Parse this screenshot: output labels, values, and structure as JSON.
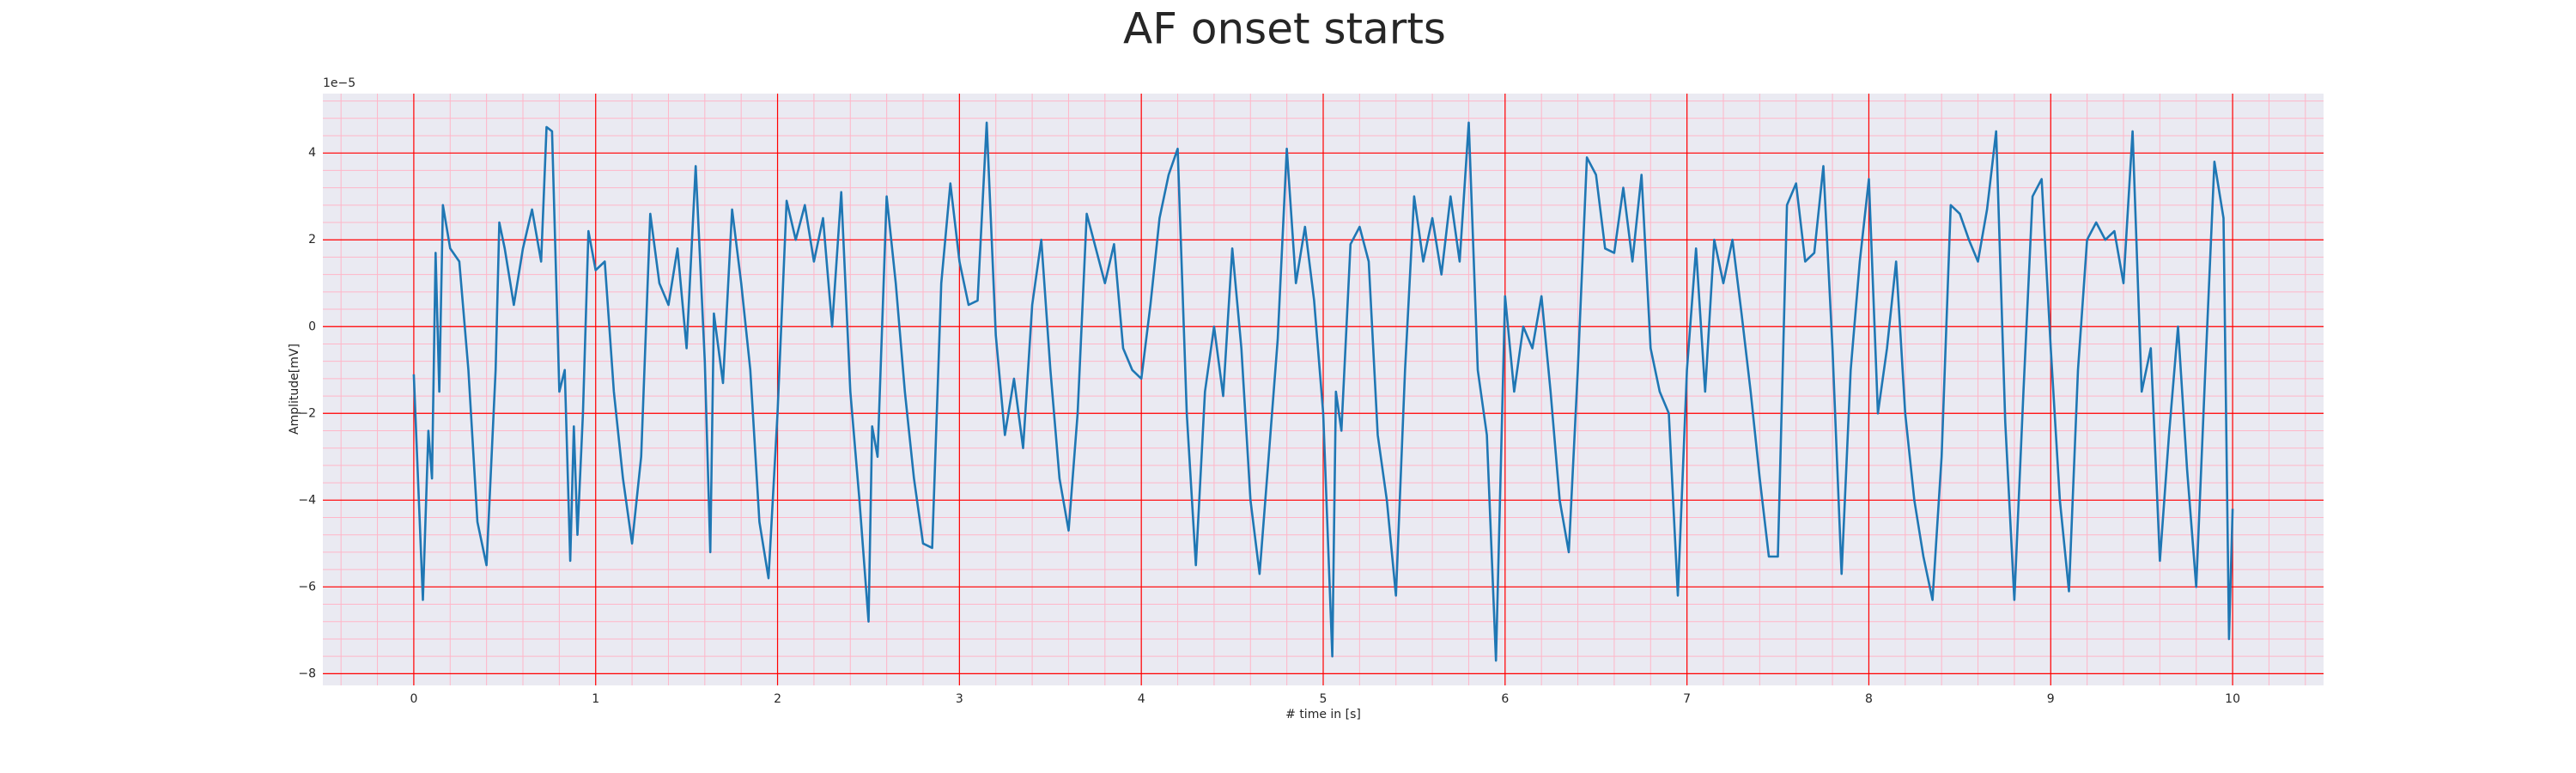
{
  "chart_data": {
    "type": "line",
    "title": "AF onset starts",
    "xlabel": "# time in [s]",
    "ylabel": "Amplitude[mV]",
    "offset_text": "1e−5",
    "x": [
      0,
      0.05,
      0.08,
      0.1,
      0.12,
      0.14,
      0.16,
      0.2,
      0.25,
      0.3,
      0.35,
      0.4,
      0.45,
      0.47,
      0.5,
      0.55,
      0.6,
      0.65,
      0.7,
      0.73,
      0.76,
      0.8,
      0.83,
      0.86,
      0.88,
      0.9,
      0.93,
      0.96,
      1.0,
      1.05,
      1.1,
      1.15,
      1.2,
      1.25,
      1.3,
      1.35,
      1.4,
      1.45,
      1.5,
      1.55,
      1.6,
      1.63,
      1.65,
      1.7,
      1.75,
      1.8,
      1.85,
      1.9,
      1.95,
      2.0,
      2.05,
      2.1,
      2.15,
      2.2,
      2.25,
      2.3,
      2.35,
      2.4,
      2.45,
      2.5,
      2.52,
      2.55,
      2.6,
      2.65,
      2.7,
      2.75,
      2.8,
      2.85,
      2.9,
      2.95,
      3.0,
      3.05,
      3.1,
      3.15,
      3.2,
      3.25,
      3.3,
      3.35,
      3.4,
      3.45,
      3.5,
      3.55,
      3.6,
      3.65,
      3.7,
      3.75,
      3.8,
      3.85,
      3.9,
      3.95,
      4.0,
      4.05,
      4.1,
      4.15,
      4.2,
      4.25,
      4.3,
      4.35,
      4.4,
      4.45,
      4.5,
      4.55,
      4.6,
      4.65,
      4.7,
      4.75,
      4.8,
      4.85,
      4.9,
      4.95,
      5.0,
      5.05,
      5.07,
      5.1,
      5.15,
      5.2,
      5.25,
      5.3,
      5.35,
      5.4,
      5.45,
      5.5,
      5.55,
      5.6,
      5.65,
      5.7,
      5.75,
      5.8,
      5.85,
      5.9,
      5.95,
      6.0,
      6.05,
      6.1,
      6.15,
      6.2,
      6.25,
      6.3,
      6.35,
      6.4,
      6.45,
      6.5,
      6.55,
      6.6,
      6.65,
      6.7,
      6.75,
      6.8,
      6.85,
      6.9,
      6.95,
      7.0,
      7.05,
      7.1,
      7.15,
      7.2,
      7.25,
      7.3,
      7.35,
      7.4,
      7.45,
      7.5,
      7.55,
      7.6,
      7.65,
      7.7,
      7.75,
      7.8,
      7.85,
      7.9,
      7.95,
      8.0,
      8.05,
      8.1,
      8.15,
      8.2,
      8.25,
      8.3,
      8.35,
      8.4,
      8.45,
      8.5,
      8.55,
      8.6,
      8.65,
      8.7,
      8.75,
      8.8,
      8.85,
      8.9,
      8.95,
      9.0,
      9.05,
      9.1,
      9.15,
      9.2,
      9.25,
      9.3,
      9.35,
      9.4,
      9.45,
      9.5,
      9.55,
      9.6,
      9.65,
      9.7,
      9.75,
      9.8,
      9.85,
      9.9,
      9.95,
      9.98,
      10.0
    ],
    "series": [
      {
        "color": "#1f77b4",
        "values": [
          -1.1,
          -6.3,
          -2.4,
          -3.5,
          1.7,
          -1.5,
          2.8,
          1.8,
          1.5,
          -1,
          -4.5,
          -5.5,
          -1,
          2.4,
          1.8,
          0.5,
          1.8,
          2.7,
          1.5,
          4.6,
          4.5,
          -1.5,
          -1,
          -5.4,
          -2.3,
          -4.8,
          -2,
          2.2,
          1.3,
          1.5,
          -1.5,
          -3.5,
          -5,
          -3,
          2.6,
          1,
          0.5,
          1.8,
          -0.5,
          3.7,
          -0.8,
          -5.2,
          0.3,
          -1.3,
          2.7,
          1,
          -1,
          -4.5,
          -5.8,
          -2,
          2.9,
          2,
          2.8,
          1.5,
          2.5,
          0,
          3.1,
          -1.5,
          -4,
          -6.8,
          -2.3,
          -3,
          3,
          1,
          -1.5,
          -3.5,
          -5,
          -5.1,
          1,
          3.3,
          1.5,
          0.5,
          0.6,
          4.7,
          -0.2,
          -2.5,
          -1.2,
          -2.8,
          0.5,
          2,
          -1,
          -3.5,
          -4.7,
          -2,
          2.6,
          1.8,
          1,
          1.9,
          -0.5,
          -1,
          -1.2,
          0.5,
          2.5,
          3.5,
          4.1,
          -2,
          -5.5,
          -1.5,
          0,
          -1.6,
          1.8,
          -0.5,
          -4,
          -5.7,
          -3,
          -0.3,
          4.1,
          1,
          2.3,
          0.6,
          -2,
          -7.6,
          -1.5,
          -2.4,
          1.9,
          2.3,
          1.5,
          -2.5,
          -4,
          -6.2,
          -1,
          3,
          1.5,
          2.5,
          1.2,
          3,
          1.5,
          4.7,
          -1,
          -2.5,
          -7.7,
          0.7,
          -1.5,
          0,
          -0.5,
          0.7,
          -1.5,
          -4,
          -5.2,
          -1,
          3.9,
          3.5,
          1.8,
          1.7,
          3.2,
          1.5,
          3.5,
          -0.5,
          -1.5,
          -2,
          -6.2,
          -1,
          1.8,
          -1.5,
          2,
          1,
          2,
          0.3,
          -1.5,
          -3.5,
          -5.3,
          -5.3,
          2.8,
          3.3,
          1.5,
          1.7,
          3.7,
          -0.5,
          -5.7,
          -1,
          1.5,
          3.4,
          -2,
          -0.5,
          1.5,
          -2,
          -4,
          -5.3,
          -6.3,
          -3,
          2.8,
          2.6,
          2,
          1.5,
          2.7,
          4.5,
          -2.2,
          -6.3,
          -1.5,
          3,
          3.4,
          -0.5,
          -4,
          -6.1,
          -1,
          2,
          2.4,
          2,
          2.2,
          1,
          4.5,
          -1.5,
          -0.5,
          -5.4,
          -2.5,
          0,
          -3.3,
          -6,
          -1,
          3.8,
          2.5,
          -7.2,
          -4.2
        ]
      }
    ],
    "xlim": [
      -0.5,
      10.5
    ],
    "ylim": [
      -8.27,
      5.37
    ],
    "xticks": [
      0,
      1,
      2,
      3,
      4,
      5,
      6,
      7,
      8,
      9,
      10
    ],
    "yticks": [
      {
        "value": -8,
        "label": "−8"
      },
      {
        "value": -6,
        "label": "−6"
      },
      {
        "value": -4,
        "label": "−4"
      },
      {
        "value": -2,
        "label": "−2"
      },
      0,
      2,
      4
    ],
    "grid": true,
    "grid_color": "#ff0000",
    "minor_grid": true,
    "minor_grid_color": "#ffb6c8",
    "background": "#eaeaf2"
  }
}
